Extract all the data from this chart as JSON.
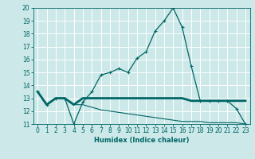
{
  "xlabel": "Humidex (Indice chaleur)",
  "xlim": [
    -0.5,
    23.5
  ],
  "ylim": [
    11,
    20
  ],
  "yticks": [
    11,
    12,
    13,
    14,
    15,
    16,
    17,
    18,
    19,
    20
  ],
  "xticks": [
    0,
    1,
    2,
    3,
    4,
    5,
    6,
    7,
    8,
    9,
    10,
    11,
    12,
    13,
    14,
    15,
    16,
    17,
    18,
    19,
    20,
    21,
    22,
    23
  ],
  "bg_color": "#cce8e8",
  "line_color": "#006666",
  "grid_color": "#ffffff",
  "line1_x": [
    0,
    1,
    2,
    3,
    4,
    5,
    6,
    7,
    8,
    9,
    10,
    11,
    12,
    13,
    14,
    15,
    16,
    17,
    18,
    19,
    20,
    21,
    22,
    23
  ],
  "line1_y": [
    13.5,
    12.5,
    13.0,
    13.0,
    11.0,
    12.7,
    13.5,
    14.8,
    15.0,
    15.3,
    15.0,
    16.1,
    16.6,
    18.2,
    19.0,
    20.0,
    18.5,
    15.5,
    12.8,
    12.8,
    12.8,
    12.8,
    12.2,
    11.0
  ],
  "line2_x": [
    0,
    1,
    2,
    3,
    4,
    5,
    6,
    7,
    8,
    9,
    10,
    11,
    12,
    13,
    14,
    15,
    16,
    17,
    18,
    19,
    20,
    21,
    22,
    23
  ],
  "line2_y": [
    13.5,
    12.5,
    13.0,
    13.0,
    12.5,
    13.0,
    13.0,
    13.0,
    13.0,
    13.0,
    13.0,
    13.0,
    13.0,
    13.0,
    13.0,
    13.0,
    13.0,
    12.8,
    12.8,
    12.8,
    12.8,
    12.8,
    12.8,
    12.8
  ],
  "line3_x": [
    0,
    1,
    2,
    3,
    4,
    5,
    6,
    7,
    8,
    9,
    10,
    11,
    12,
    13,
    14,
    15,
    16,
    17,
    18,
    19,
    20,
    21,
    22,
    23
  ],
  "line3_y": [
    13.5,
    12.5,
    13.0,
    13.0,
    12.5,
    12.5,
    12.3,
    12.1,
    12.0,
    11.9,
    11.8,
    11.7,
    11.6,
    11.5,
    11.4,
    11.3,
    11.2,
    11.2,
    11.2,
    11.1,
    11.1,
    11.1,
    11.1,
    11.0
  ]
}
